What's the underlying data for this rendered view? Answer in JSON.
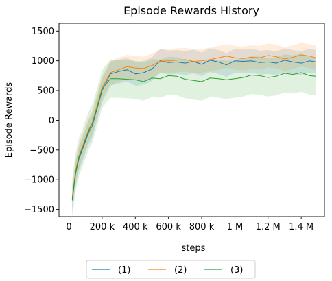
{
  "chart_data": {
    "type": "line",
    "title": "Episode Rewards History",
    "xlabel": "steps",
    "ylabel": "Episode Rewards",
    "xlim": [
      -60000,
      1540000
    ],
    "ylim": [
      -1620,
      1630
    ],
    "x_ticks": [
      {
        "value": 0,
        "label": "0"
      },
      {
        "value": 200000,
        "label": "200 k"
      },
      {
        "value": 400000,
        "label": "400 k"
      },
      {
        "value": 600000,
        "label": "600 k"
      },
      {
        "value": 800000,
        "label": "800 k"
      },
      {
        "value": 1000000,
        "label": "1 M"
      },
      {
        "value": 1200000,
        "label": "1.2 M"
      },
      {
        "value": 1400000,
        "label": "1.4 M"
      }
    ],
    "y_ticks": [
      {
        "value": -1500,
        "label": "−1500"
      },
      {
        "value": -1000,
        "label": "−1000"
      },
      {
        "value": -500,
        "label": "−500"
      },
      {
        "value": 0,
        "label": "0"
      },
      {
        "value": 500,
        "label": "500"
      },
      {
        "value": 1000,
        "label": "1000"
      },
      {
        "value": 1500,
        "label": "1500"
      }
    ],
    "grid": false,
    "legend": {
      "position": "bottom-center",
      "columns": 3
    },
    "series": [
      {
        "name": "(1)",
        "color": "#1f77b4",
        "x": [
          20000,
          40000,
          60000,
          80000,
          100000,
          120000,
          140000,
          160000,
          180000,
          200000,
          250000,
          300000,
          350000,
          400000,
          450000,
          500000,
          550000,
          600000,
          650000,
          700000,
          750000,
          800000,
          850000,
          900000,
          950000,
          1000000,
          1050000,
          1100000,
          1150000,
          1200000,
          1250000,
          1300000,
          1350000,
          1400000,
          1450000,
          1490000
        ],
        "y": [
          -1350,
          -900,
          -650,
          -500,
          -350,
          -200,
          -100,
          100,
          300,
          500,
          780,
          820,
          850,
          780,
          800,
          860,
          1000,
          970,
          980,
          960,
          990,
          940,
          1010,
          980,
          930,
          1000,
          990,
          1000,
          970,
          980,
          960,
          1010,
          980,
          960,
          1000,
          980
        ],
        "band": 200
      },
      {
        "name": "(2)",
        "color": "#ff7f0e",
        "x": [
          20000,
          40000,
          60000,
          80000,
          100000,
          120000,
          140000,
          160000,
          180000,
          200000,
          250000,
          300000,
          350000,
          400000,
          450000,
          500000,
          550000,
          600000,
          650000,
          700000,
          750000,
          800000,
          850000,
          900000,
          950000,
          1000000,
          1050000,
          1100000,
          1150000,
          1200000,
          1250000,
          1300000,
          1350000,
          1400000,
          1450000,
          1490000
        ],
        "y": [
          -1300,
          -850,
          -600,
          -450,
          -300,
          -150,
          -50,
          150,
          350,
          550,
          800,
          850,
          900,
          880,
          870,
          920,
          990,
          1000,
          1010,
          1020,
          990,
          1000,
          1020,
          1050,
          1080,
          1050,
          1040,
          1060,
          1050,
          1090,
          1070,
          1030,
          1060,
          1100,
          1080,
          1050
        ],
        "band": 200
      },
      {
        "name": "(3)",
        "color": "#2ca02c",
        "x": [
          20000,
          40000,
          60000,
          80000,
          100000,
          120000,
          140000,
          160000,
          180000,
          200000,
          250000,
          300000,
          350000,
          400000,
          450000,
          500000,
          550000,
          600000,
          650000,
          700000,
          750000,
          800000,
          850000,
          900000,
          950000,
          1000000,
          1050000,
          1100000,
          1150000,
          1200000,
          1250000,
          1300000,
          1350000,
          1400000,
          1450000,
          1490000
        ],
        "y": [
          -1320,
          -880,
          -620,
          -480,
          -320,
          -170,
          -60,
          120,
          320,
          530,
          700,
          700,
          690,
          680,
          650,
          710,
          700,
          750,
          740,
          690,
          670,
          650,
          710,
          700,
          680,
          700,
          720,
          760,
          750,
          720,
          740,
          790,
          770,
          800,
          750,
          740
        ],
        "band": 320
      }
    ]
  }
}
